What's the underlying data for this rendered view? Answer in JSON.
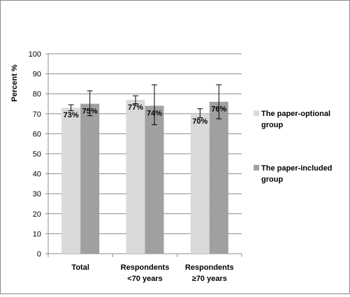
{
  "chart_data": {
    "type": "bar",
    "ylabel": "Percent %",
    "xlabel": "",
    "title": "",
    "ylim": [
      0,
      100
    ],
    "yticks": [
      0,
      10,
      20,
      30,
      40,
      50,
      60,
      70,
      80,
      90,
      100
    ],
    "grid": true,
    "legend_position": "right",
    "categories": [
      [
        "Total"
      ],
      [
        "Respondents",
        "<70 years"
      ],
      [
        "Respondents",
        "≥70 years"
      ]
    ],
    "series": [
      {
        "name_lines": [
          "The paper-optional",
          "group"
        ],
        "color": "#d9d9d9",
        "values": [
          73,
          77,
          70
        ],
        "labels": [
          "73%",
          "77%",
          "70%"
        ],
        "error_low": [
          71.5,
          75,
          68
        ],
        "error_high": [
          74.5,
          79,
          72.5
        ]
      },
      {
        "name_lines": [
          "The paper-included",
          "group"
        ],
        "color": "#a0a0a0",
        "values": [
          75,
          74,
          76
        ],
        "labels": [
          "75%",
          "74%",
          "76%"
        ],
        "error_low": [
          69,
          64.5,
          67.5
        ],
        "error_high": [
          81.5,
          84.5,
          84.5
        ]
      }
    ]
  }
}
